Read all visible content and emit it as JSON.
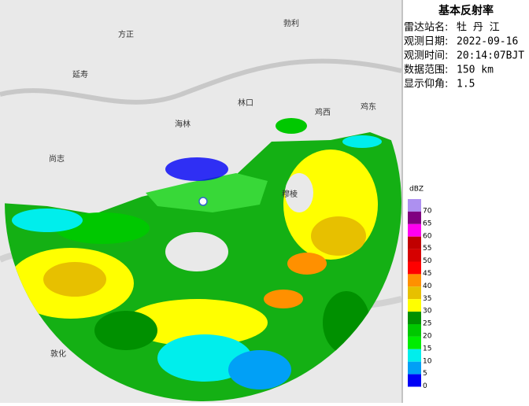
{
  "header": {
    "title": "基本反射率"
  },
  "info": [
    {
      "label": "雷达站名:",
      "value": "牡 丹 江"
    },
    {
      "label": "观测日期:",
      "value": "2022-09-16"
    },
    {
      "label": "观测时间:",
      "value": "20:14:07BJT"
    },
    {
      "label": "数据范围:",
      "value": "150 km"
    },
    {
      "label": "显示仰角:",
      "value": "1.5"
    }
  ],
  "legend": {
    "unit": "dBZ",
    "items": [
      {
        "label": 70,
        "color": "#ad90f0"
      },
      {
        "label": 65,
        "color": "#800080"
      },
      {
        "label": 60,
        "color": "#ff00f0"
      },
      {
        "label": 55,
        "color": "#c00000"
      },
      {
        "label": 50,
        "color": "#d60000"
      },
      {
        "label": 45,
        "color": "#ff0000"
      },
      {
        "label": 40,
        "color": "#ff9000"
      },
      {
        "label": 35,
        "color": "#e7c000"
      },
      {
        "label": 30,
        "color": "#ffff00"
      },
      {
        "label": 25,
        "color": "#009000"
      },
      {
        "label": 20,
        "color": "#00c800"
      },
      {
        "label": 15,
        "color": "#00ec00"
      },
      {
        "label": 10,
        "color": "#00eeec"
      },
      {
        "label": 5,
        "color": "#01a0f6"
      },
      {
        "label": 0,
        "color": "#0000f6"
      }
    ]
  },
  "places": [
    {
      "name": "方正"
    },
    {
      "name": "勃利"
    },
    {
      "name": "延寿"
    },
    {
      "name": "林口"
    },
    {
      "name": "鸡西"
    },
    {
      "name": "鸡东"
    },
    {
      "name": "海林"
    },
    {
      "name": "尚志"
    },
    {
      "name": "穆棱"
    },
    {
      "name": "敦化"
    }
  ]
}
